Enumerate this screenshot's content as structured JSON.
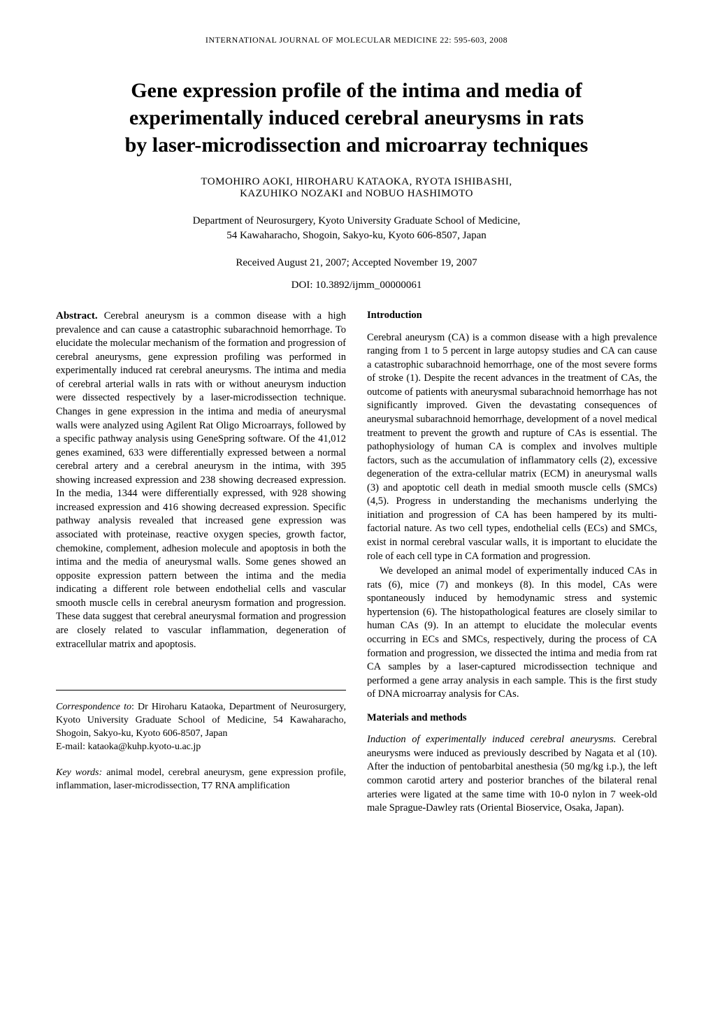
{
  "running_head": "INTERNATIONAL JOURNAL OF MOLECULAR MEDICINE  22:  595-603,  2008",
  "title_l1": "Gene expression profile of the intima and media of",
  "title_l2": "experimentally induced cerebral aneurysms in rats",
  "title_l3": "by laser-microdissection and microarray techniques",
  "authors_l1": "TOMOHIRO AOKI,  HIROHARU KATAOKA,  RYOTA ISHIBASHI,",
  "authors_l2": "KAZUHIKO NOZAKI  and  NOBUO HASHIMOTO",
  "affiliation_l1": "Department of Neurosurgery, Kyoto University Graduate School of Medicine,",
  "affiliation_l2": "54 Kawaharacho, Shogoin, Sakyo-ku, Kyoto 606-8507, Japan",
  "dates": "Received August 21, 2007;  Accepted November 19, 2007",
  "doi": "DOI: 10.3892/ijmm_00000061",
  "abstract": {
    "head": "Abstract.",
    "body": " Cerebral aneurysm is a common disease with a high prevalence and can cause a catastrophic subarachnoid hemorrhage. To elucidate the molecular mechanism of the formation and progression of cerebral aneurysms, gene expression profiling was performed in experimentally induced rat cerebral aneurysms. The intima and media of cerebral arterial walls in rats with or without aneurysm induction were dissected respectively by a laser-microdissection technique. Changes in gene expression in the intima and media of aneurysmal walls were analyzed using Agilent Rat Oligo Microarrays, followed by a specific pathway analysis using GeneSpring software. Of the 41,012 genes examined, 633 were differentially expressed between a normal cerebral artery and a cerebral aneurysm in the intima, with 395 showing increased expression and 238 showing decreased expression. In the media, 1344 were differentially expressed, with 928 showing increased expression and 416 showing decreased expression. Specific pathway analysis revealed that increased gene expression was associated with proteinase, reactive oxygen species, growth factor, chemokine, complement, adhesion molecule and apoptosis in both the intima and the media of aneurysmal walls. Some genes showed an opposite expression pattern between the intima and the media indicating a different role between endothelial cells and vascular smooth muscle cells in cerebral aneurysm formation and progression. These data suggest that cerebral aneurysmal formation and progression are closely related to vascular inflammation, degeneration of extracellular matrix and apoptosis."
  },
  "correspondence": {
    "head": "Correspondence to",
    "body": ": Dr Hiroharu Kataoka, Department of Neurosurgery, Kyoto University Graduate School of Medicine, 54 Kawaharacho, Shogoin, Sakyo-ku, Kyoto 606-8507, Japan",
    "email": "E-mail: kataoka@kuhp.kyoto-u.ac.jp"
  },
  "keywords": {
    "head": "Key words:",
    "body": " animal model, cerebral aneurysm, gene expression profile, inflammation, laser-microdissection, T7 RNA amplification"
  },
  "introduction": {
    "head": "Introduction",
    "p1": "Cerebral aneurysm (CA) is a common disease with a high prevalence ranging from 1 to 5 percent in large autopsy studies and CA can cause a catastrophic subarachnoid hemorrhage, one of the most severe forms of stroke (1). Despite the recent advances in the treatment of CAs, the outcome of patients with aneurysmal subarachnoid hemorrhage has not significantly improved. Given the devastating consequences of aneurysmal subarachnoid hemorrhage, development of a novel medical treatment to prevent the growth and rupture of CAs is essential. The pathophysiology of human CA is complex and involves multiple factors, such as the accumulation of inflammatory cells (2), excessive degeneration of the extra-cellular matrix (ECM) in aneurysmal walls (3) and apoptotic cell death in medial smooth muscle cells (SMCs) (4,5). Progress in understanding the mechanisms underlying the initiation and progression of CA has been hampered by its multi-factorial nature. As two cell types, endothelial cells (ECs) and SMCs, exist in normal cerebral vascular walls, it is important to elucidate the role of each cell type in CA formation and progression.",
    "p2": "We developed an animal model of experimentally induced CAs in rats (6), mice (7) and monkeys (8). In this model, CAs were spontaneously induced by hemodynamic stress and systemic hypertension (6). The histopathological features are closely similar to human CAs (9). In an attempt to elucidate the molecular events occurring in ECs and SMCs, respectively, during the process of CA formation and progression, we dissected the intima and media from rat CA samples by a laser-captured microdissection technique and performed a gene array analysis in each sample. This is the first study of DNA microarray analysis for CAs."
  },
  "materials": {
    "head": "Materials and methods",
    "sub1": "Induction of experimentally induced cerebral aneurysms.",
    "p1": " Cerebral aneurysms were induced as previously described by Nagata et al (10). After the induction of pentobarbital anesthesia (50 mg/kg i.p.), the left common carotid artery and posterior branches of the bilateral renal arteries were ligated at the same time with 10-0 nylon in 7 week-old male Sprague-Dawley rats (Oriental Bioservice, Osaka, Japan)."
  }
}
